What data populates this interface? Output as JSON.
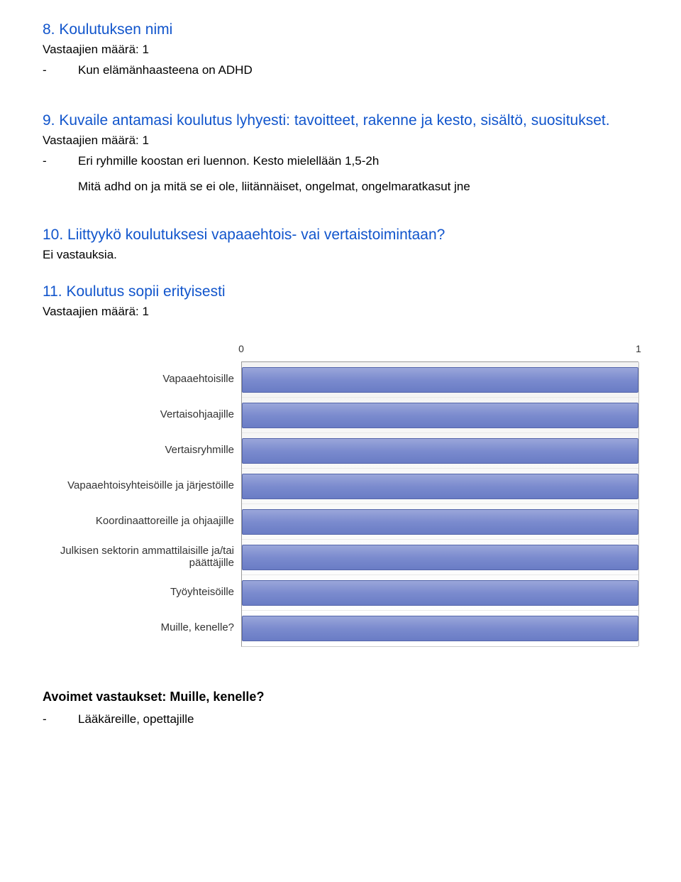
{
  "q8": {
    "heading": "8. Koulutuksen nimi",
    "respondents": "Vastaajien määrä: 1",
    "answer": "Kun elämänhaasteena on ADHD"
  },
  "q9": {
    "heading": "9. Kuvaile antamasi koulutus lyhyesti: tavoitteet, rakenne ja kesto, sisältö, suositukset.",
    "respondents": "Vastaajien määrä: 1",
    "answer1": "Eri ryhmille koostan eri luennon. Kesto mielellään 1,5-2h",
    "answer2": "Mitä adhd on ja mitä se ei ole, liitännäiset, ongelmat, ongelmaratkasut jne"
  },
  "q10": {
    "heading": "10. Liittyykö koulutuksesi vapaaehtois- vai vertaistoimintaan?",
    "noanswers": "Ei vastauksia."
  },
  "q11": {
    "heading": "11. Koulutus sopii erityisesti",
    "respondents": "Vastaajien määrä: 1"
  },
  "chart": {
    "type": "bar-horizontal",
    "xlim": [
      0,
      1
    ],
    "ticks": [
      0,
      1
    ],
    "bar_color_top": "#9aa6da",
    "bar_color_bottom": "#6a7cc5",
    "bar_border": "#5566aa",
    "bg_top": "#f3f3f3",
    "bg_bottom": "#ffffff",
    "grid_color": "#bbbbbb",
    "categories": [
      {
        "label": "Vapaaehtoisille",
        "value": 1
      },
      {
        "label": "Vertaisohjaajille",
        "value": 1
      },
      {
        "label": "Vertaisryhmille",
        "value": 1
      },
      {
        "label": "Vapaaehtoisyhteisöille ja järjestöille",
        "value": 1
      },
      {
        "label": "Koordinaattoreille ja ohjaajille",
        "value": 1
      },
      {
        "label": "Julkisen sektorin ammattilaisille ja/tai päättäjille",
        "value": 1
      },
      {
        "label": "Työyhteisöille",
        "value": 1
      },
      {
        "label": "Muille, kenelle?",
        "value": 1
      }
    ]
  },
  "open": {
    "heading": "Avoimet vastaukset: Muille, kenelle?",
    "answer": "Lääkäreille, opettajille"
  }
}
